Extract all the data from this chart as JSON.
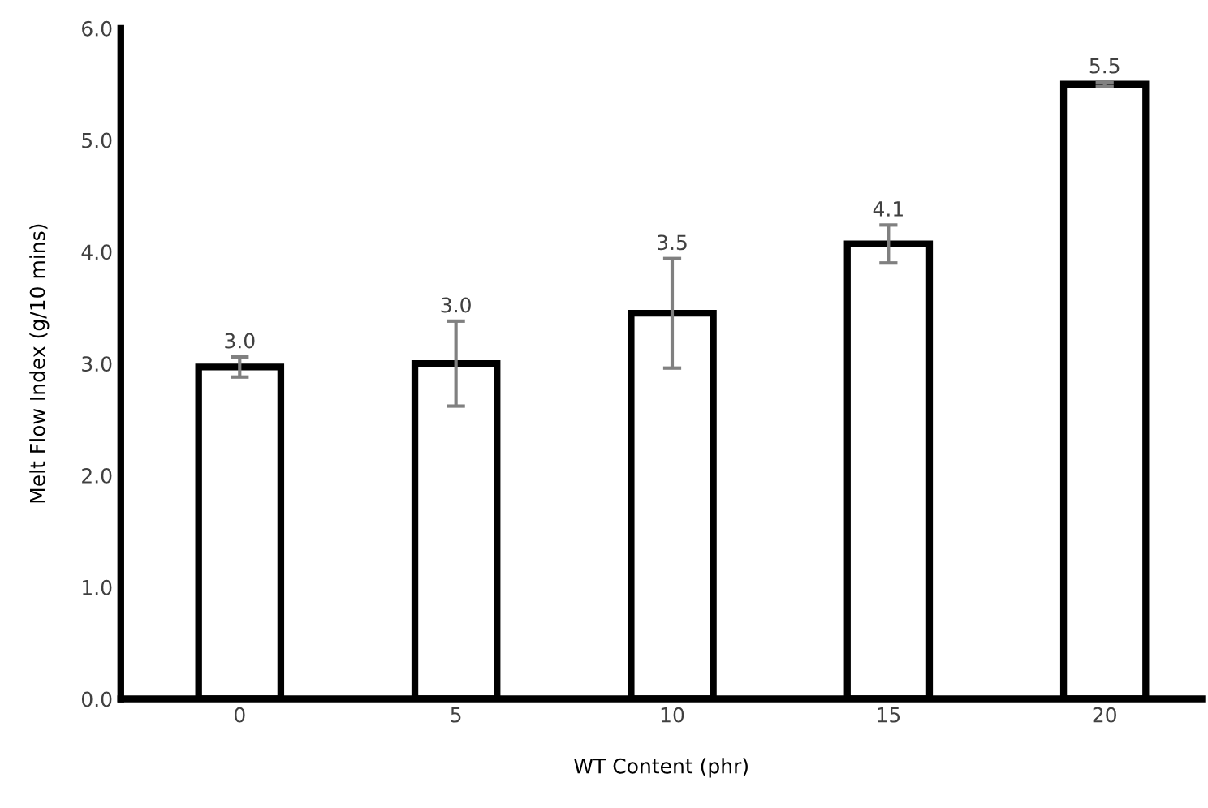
{
  "chart_data": {
    "type": "bar",
    "xlabel": "WT Content (phr)",
    "ylabel": "Melt Flow Index (g/10 mins)",
    "categories": [
      "0",
      "5",
      "10",
      "15",
      "20"
    ],
    "values": [
      2.97,
      3.0,
      3.45,
      4.07,
      5.5
    ],
    "errors": [
      0.09,
      0.38,
      0.49,
      0.17,
      0.02
    ],
    "value_labels": [
      "3.0",
      "3.0",
      "3.5",
      "4.1",
      "5.5"
    ],
    "color": "#ffffff",
    "ylim": [
      0,
      6
    ],
    "yticks": [
      {
        "value": 0,
        "label": "0.0"
      },
      {
        "value": 1,
        "label": "1.0"
      },
      {
        "value": 2,
        "label": "2.0"
      },
      {
        "value": 3,
        "label": "3.0"
      },
      {
        "value": 4,
        "label": "4.0"
      },
      {
        "value": 5,
        "label": "5.0"
      },
      {
        "value": 6,
        "label": "6.0"
      }
    ],
    "grid": false,
    "legend": false
  }
}
